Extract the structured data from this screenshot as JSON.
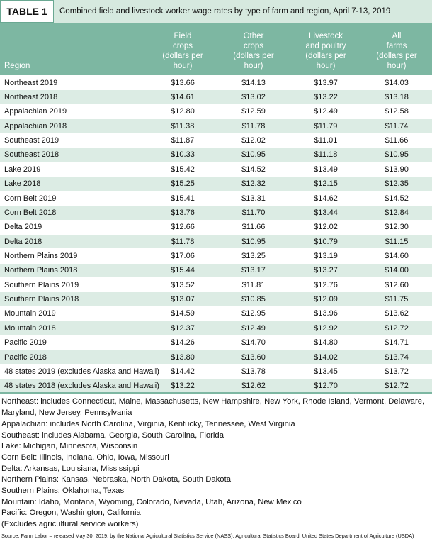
{
  "title": {
    "label": "TABLE 1",
    "caption": "Combined field and livestock worker wage rates by type of farm and region, April 7-13, 2019"
  },
  "table": {
    "header": {
      "region": "Region",
      "columns": [
        [
          "Field",
          "crops",
          "(dollars per",
          "hour)"
        ],
        [
          "Other",
          "crops",
          "(dollars per",
          "hour)"
        ],
        [
          "Livestock",
          "and poultry",
          "(dollars per",
          "hour)"
        ],
        [
          "All",
          "farms",
          "(dollars per",
          "hour)"
        ]
      ]
    },
    "rows": [
      [
        "Northeast 2019",
        "$13.66",
        "$14.13",
        "$13.97",
        "$14.03"
      ],
      [
        "Northeast 2018",
        "$14.61",
        "$13.02",
        "$13.22",
        "$13.18"
      ],
      [
        "Appalachian 2019",
        "$12.80",
        "$12.59",
        "$12.49",
        "$12.58"
      ],
      [
        "Appalachian 2018",
        "$11.38",
        "$11.78",
        "$11.79",
        "$11.74"
      ],
      [
        "Southeast 2019",
        "$11.87",
        "$12.02",
        "$11.01",
        "$11.66"
      ],
      [
        "Southeast 2018",
        "$10.33",
        "$10.95",
        "$11.18",
        "$10.95"
      ],
      [
        "Lake 2019",
        "$15.42",
        "$14.52",
        "$13.49",
        "$13.90"
      ],
      [
        "Lake 2018",
        "$15.25",
        "$12.32",
        "$12.15",
        "$12.35"
      ],
      [
        "Corn Belt 2019",
        "$15.41",
        "$13.31",
        "$14.62",
        "$14.52"
      ],
      [
        "Corn Belt 2018",
        "$13.76",
        "$11.70",
        "$13.44",
        "$12.84"
      ],
      [
        "Delta 2019",
        "$12.66",
        "$11.66",
        "$12.02",
        "$12.30"
      ],
      [
        "Delta 2018",
        "$11.78",
        "$10.95",
        "$10.79",
        "$11.15"
      ],
      [
        "Northern Plains 2019",
        "$17.06",
        "$13.25",
        "$13.19",
        "$14.60"
      ],
      [
        "Northern Plains 2018",
        "$15.44",
        "$13.17",
        "$13.27",
        "$14.00"
      ],
      [
        "Southern Plains 2019",
        "$13.52",
        "$11.81",
        "$12.76",
        "$12.60"
      ],
      [
        "Southern Plains 2018",
        "$13.07",
        "$10.85",
        "$12.09",
        "$11.75"
      ],
      [
        "Mountain 2019",
        "$14.59",
        "$12.95",
        "$13.96",
        "$13.62"
      ],
      [
        "Mountain 2018",
        "$12.37",
        "$12.49",
        "$12.92",
        "$12.72"
      ],
      [
        "Pacific 2019",
        "$14.26",
        "$14.70",
        "$14.80",
        "$14.71"
      ],
      [
        "Pacific 2018",
        "$13.80",
        "$13.60",
        "$14.02",
        "$13.74"
      ],
      [
        "48 states 2019 (excludes Alaska and Hawaii)",
        "$14.42",
        "$13.78",
        "$13.45",
        "$13.72"
      ],
      [
        "48 states 2018 (excludes Alaska and Hawaii)",
        "$13.22",
        "$12.62",
        "$12.70",
        "$12.72"
      ]
    ]
  },
  "notes": [
    "Northeast: includes Connecticut, Maine, Massachusetts, New Hampshire, New York, Rhode Island, Vermont, Delaware, Maryland, New Jersey, Pennsylvania",
    "Appalachian: includes North Carolina, Virginia, Kentucky, Tennessee, West Virginia",
    "Southeast: includes Alabama, Georgia, South Carolina, Florida",
    "Lake: Michigan, Minnesota, Wisconsin",
    "Corn Belt: Illinois, Indiana, Ohio, Iowa, Missouri",
    "Delta: Arkansas, Louisiana, Mississippi",
    "Northern Plains: Kansas, Nebraska, North Dakota, South Dakota",
    "Southern Plains: Oklahoma, Texas",
    "Mountain: Idaho, Montana, Wyoming, Colorado, Nevada, Utah, Arizona, New Mexico",
    "Pacific: Oregon, Washington, California",
    "(Excludes agricultural service workers)"
  ],
  "source": "Source: Farm Labor – released May 30, 2019, by the National Agricultural Statistics Service (NASS), Agricultural Statistics Board, United States Department of Agriculture (USDA)"
}
